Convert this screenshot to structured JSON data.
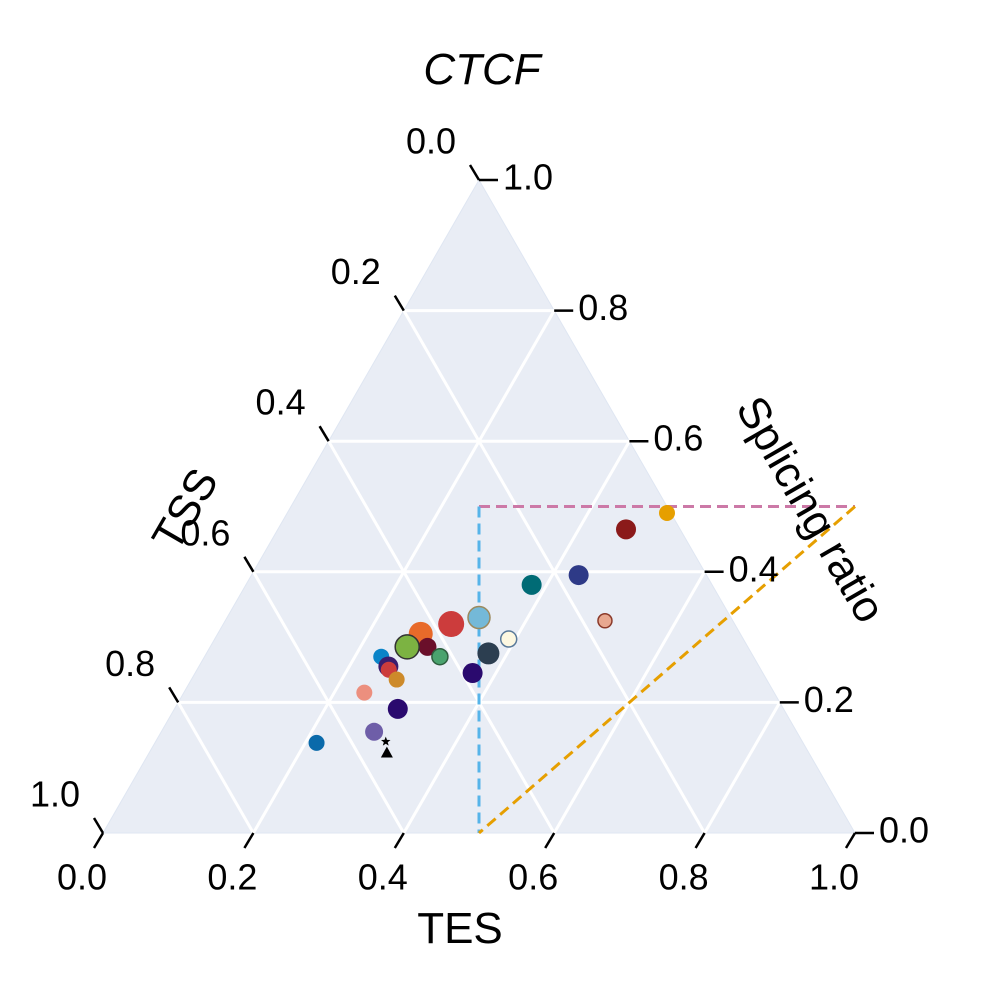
{
  "chart_data": {
    "type": "scatter",
    "subtype": "ternary",
    "title": "CTCF",
    "axes": {
      "bottom": {
        "label": "TES",
        "ticks": [
          "0.0",
          "0.2",
          "0.4",
          "0.6",
          "0.8",
          "1.0"
        ]
      },
      "left": {
        "label": "TSS",
        "ticks": [
          "0.0",
          "0.2",
          "0.4",
          "0.6",
          "0.8",
          "1.0"
        ]
      },
      "right": {
        "label": "Splicing ratio",
        "ticks": [
          "0.0",
          "0.2",
          "0.4",
          "0.6",
          "0.8",
          "1.0"
        ]
      }
    },
    "range": [
      0,
      1
    ],
    "grid": true,
    "background": "#e9edf5",
    "grid_color": "#ffffff",
    "reference_lines": [
      {
        "color": "#cc79a7",
        "style": "dashed",
        "splicing_ratio": 0.5,
        "from": {
          "tes": 0.25,
          "ctcf": 0.5
        },
        "to": {
          "tes": 0.75,
          "ctcf": 0.5
        }
      },
      {
        "color": "#56b4e9",
        "style": "dashed",
        "from": {
          "tes": 0.25,
          "ctcf": 0.5
        },
        "to": {
          "tes": 0.5,
          "ctcf": 0.0
        }
      },
      {
        "color": "#e69f00",
        "style": "dashed",
        "from": {
          "tes": 0.75,
          "ctcf": 0.5
        },
        "to": {
          "tes": 0.5,
          "ctcf": 0.0
        }
      }
    ],
    "points": [
      {
        "tes": 0.505,
        "ctcf": 0.49,
        "size": 8,
        "color": "#e69f00"
      },
      {
        "tes": 0.463,
        "ctcf": 0.465,
        "size": 10,
        "color": "#8b1a1a"
      },
      {
        "tes": 0.435,
        "ctcf": 0.395,
        "size": 10,
        "color": "#2e3a87"
      },
      {
        "tes": 0.38,
        "ctcf": 0.38,
        "size": 10,
        "color": "#006b75"
      },
      {
        "tes": 0.505,
        "ctcf": 0.325,
        "size": 7,
        "color": "#e8a890",
        "stroke": "#8b3a2a"
      },
      {
        "tes": 0.335,
        "ctcf": 0.33,
        "size": 11,
        "color": "#74b9d8",
        "stroke": "#9c8a5e"
      },
      {
        "tes": 0.303,
        "ctcf": 0.32,
        "size": 13,
        "color": "#cc3c3c"
      },
      {
        "tes": 0.27,
        "ctcf": 0.305,
        "size": 12,
        "color": "#e86a2a"
      },
      {
        "tes": 0.391,
        "ctcf": 0.297,
        "size": 8,
        "color": "#fdf8e1",
        "stroke": "#5a7a9a"
      },
      {
        "tes": 0.289,
        "ctcf": 0.285,
        "size": 9,
        "color": "#6a0f2a"
      },
      {
        "tes": 0.262,
        "ctcf": 0.285,
        "size": 12,
        "color": "#7cb342",
        "stroke": "#333333"
      },
      {
        "tes": 0.375,
        "ctcf": 0.275,
        "size": 11,
        "color": "#2c3e50"
      },
      {
        "tes": 0.313,
        "ctcf": 0.27,
        "size": 8,
        "color": "#4aa36e",
        "stroke": "#2e5e3e"
      },
      {
        "tes": 0.235,
        "ctcf": 0.27,
        "size": 8,
        "color": "#0a84c8"
      },
      {
        "tes": 0.252,
        "ctcf": 0.255,
        "size": 10,
        "color": "#3a1d6e"
      },
      {
        "tes": 0.255,
        "ctcf": 0.25,
        "size": 8,
        "color": "#cc3c3c"
      },
      {
        "tes": 0.369,
        "ctcf": 0.245,
        "size": 10,
        "color": "#2a0a6e"
      },
      {
        "tes": 0.273,
        "ctcf": 0.235,
        "size": 8,
        "color": "#cd8a2a"
      },
      {
        "tes": 0.24,
        "ctcf": 0.215,
        "size": 8,
        "color": "#ec8f7e"
      },
      {
        "tes": 0.297,
        "ctcf": 0.19,
        "size": 10,
        "color": "#2a0a6e"
      },
      {
        "tes": 0.283,
        "ctcf": 0.155,
        "size": 9,
        "color": "#6e5ea8"
      },
      {
        "tes": 0.215,
        "ctcf": 0.138,
        "size": 8,
        "color": "#0a6aaa"
      },
      {
        "tes": 0.306,
        "ctcf": 0.14,
        "size": 5,
        "color": "#000000",
        "marker": "star"
      },
      {
        "tes": 0.316,
        "ctcf": 0.123,
        "size": 6,
        "color": "#000000",
        "marker": "triangle"
      }
    ]
  }
}
